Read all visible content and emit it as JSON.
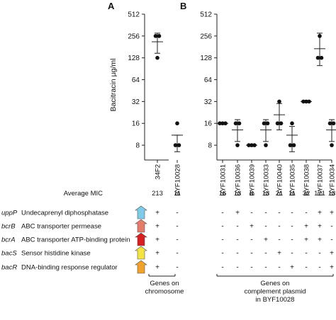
{
  "panels": {
    "a": "A",
    "b": "B"
  },
  "ylabel": "Bacitracin µg/ml",
  "yticks": [
    8,
    16,
    32,
    64,
    128,
    256,
    512
  ],
  "ylim": [
    5,
    512
  ],
  "yscale": "log2",
  "mic_label": "Average MIC",
  "genes": [
    {
      "name": "uppP",
      "desc": "Undecaprenyl diphosphatase",
      "color": "#7ecbe8"
    },
    {
      "name": "bcrB",
      "desc": "ABC transporter permease",
      "color": "#e57c6a"
    },
    {
      "name": "bcrA",
      "desc": "ABC transporter ATP-binding protein",
      "color": "#d81e1e"
    },
    {
      "name": "bacS",
      "desc": "Sensor histidine kinase",
      "color": "#f5e342"
    },
    {
      "name": "bacR",
      "desc": "DNA-binding response regulator",
      "color": "#f0a22a"
    }
  ],
  "groups": {
    "chromosome": [
      "Genes on",
      "chromosome"
    ],
    "plasmid": [
      "Genes on",
      "complement plasmid",
      "in BYF10028"
    ]
  },
  "chart_data": [
    {
      "type": "scatter",
      "panel": "A",
      "categories": [
        "34F2",
        "BYF10028"
      ],
      "ylabel": "Bacitracin µg/ml",
      "ylim": [
        5,
        512
      ],
      "points": [
        [
          256,
          256,
          128
        ],
        [
          16,
          8,
          8
        ]
      ],
      "mean": [
        213,
        11
      ],
      "sd": [
        [
          148,
          280
        ],
        [
          6.5,
          11
        ]
      ],
      "average_mic": [
        "213",
        "11"
      ],
      "gene_presence": [
        [
          "+",
          "-"
        ],
        [
          "+",
          "-"
        ],
        [
          "+",
          "-"
        ],
        [
          "+",
          "-"
        ],
        [
          "+",
          "-"
        ]
      ]
    },
    {
      "type": "scatter",
      "panel": "B",
      "categories": [
        "BYF10031",
        "BYF10036",
        "BYF10039",
        "BYF10033",
        "BYF10040",
        "BYF10035",
        "BYF10038",
        "BYF10037",
        "BYF10034"
      ],
      "ylim": [
        5,
        512
      ],
      "points": [
        [
          16,
          16,
          16
        ],
        [
          16,
          8,
          16
        ],
        [
          8,
          8,
          8
        ],
        [
          16,
          8,
          16
        ],
        [
          32,
          16,
          16
        ],
        [
          16,
          8,
          8
        ],
        [
          32,
          32,
          32
        ],
        [
          256,
          128,
          128
        ],
        [
          16,
          8,
          16
        ]
      ],
      "mean": [
        16,
        13,
        8,
        13,
        21,
        11,
        32,
        171,
        13
      ],
      "sd": [
        [
          16,
          16
        ],
        [
          9,
          18
        ],
        [
          8,
          8
        ],
        [
          9,
          18
        ],
        [
          13,
          30
        ],
        [
          6.5,
          14.5
        ],
        [
          32,
          32
        ],
        [
          100,
          280
        ],
        [
          9,
          18
        ]
      ],
      "average_mic": [
        "16",
        "13",
        "8",
        "13",
        "21",
        "11",
        "32",
        "171",
        "13"
      ],
      "gene_presence": [
        [
          "-",
          "+",
          "-",
          "-",
          "-",
          "-",
          "-",
          "+",
          "+"
        ],
        [
          "-",
          "-",
          "+",
          "-",
          "-",
          "-",
          "+",
          "+",
          "-"
        ],
        [
          "-",
          "-",
          "-",
          "+",
          "-",
          "-",
          "+",
          "+",
          "-"
        ],
        [
          "-",
          "-",
          "-",
          "-",
          "+",
          "-",
          "-",
          "-",
          "+"
        ],
        [
          "-",
          "-",
          "-",
          "-",
          "-",
          "+",
          "-",
          "-",
          "+"
        ]
      ]
    }
  ]
}
